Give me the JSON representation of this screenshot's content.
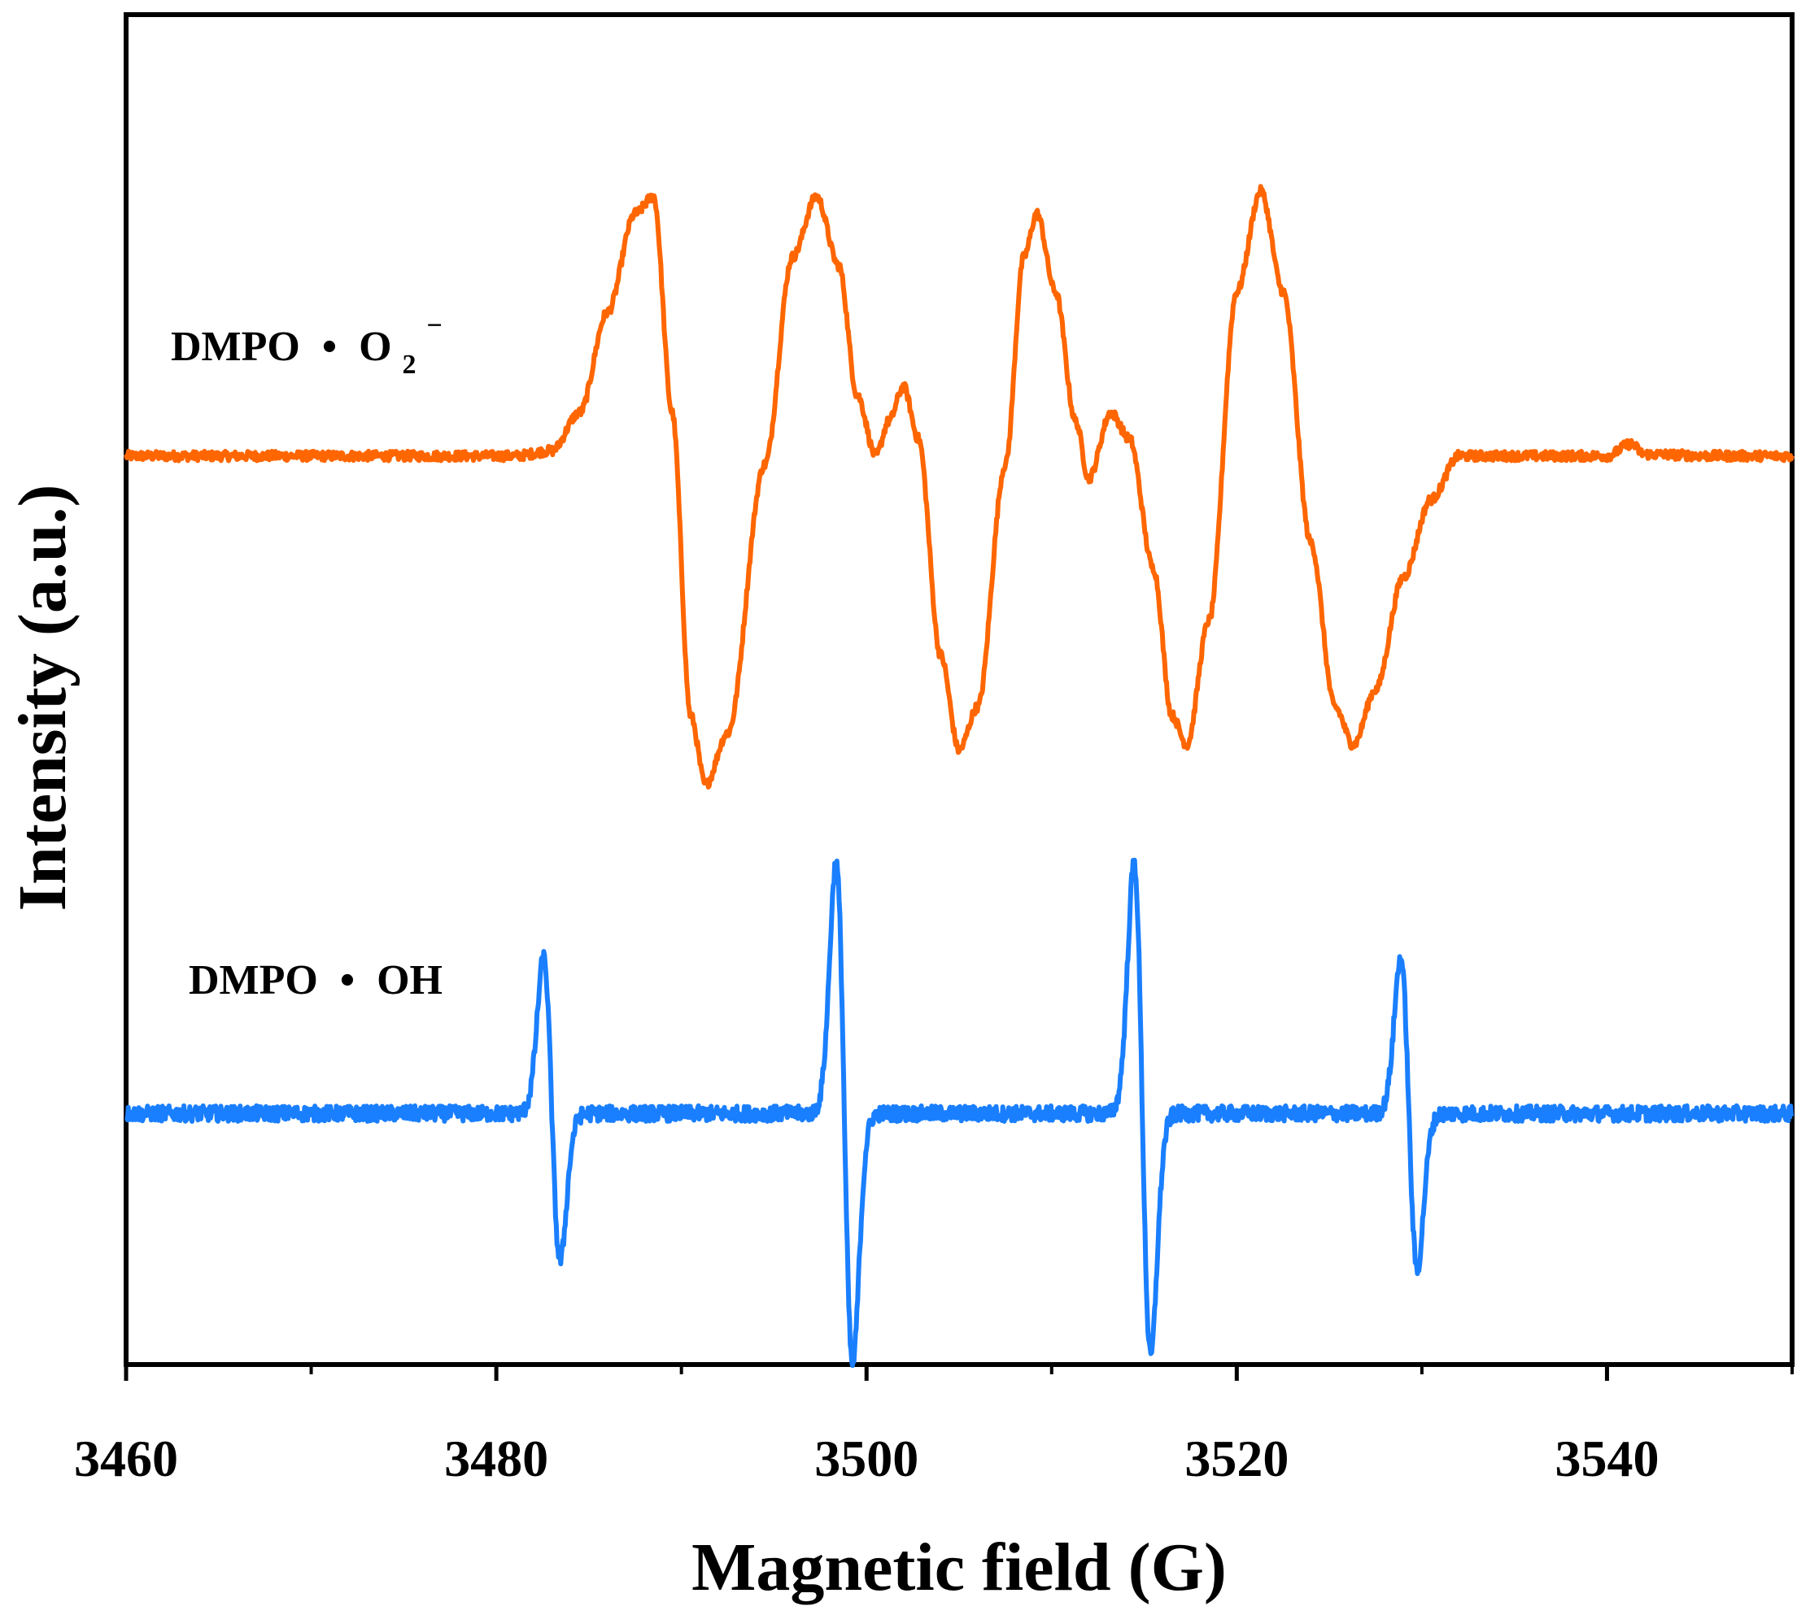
{
  "chart_data": {
    "type": "line",
    "xlabel": "Magnetic field (G)",
    "ylabel": "Intensity (a.u.)",
    "xlim": [
      3460,
      3550
    ],
    "ylim": [
      -3.2,
      4.6
    ],
    "x_ticks": [
      3460,
      3480,
      3500,
      3520,
      3540
    ],
    "x_minor_ticks": [
      3470,
      3490,
      3510,
      3530,
      3550
    ],
    "y_ticks_shown": false,
    "grid": false,
    "series": [
      {
        "name": "DMPO • O2−",
        "label_main": "DMPO",
        "label_bullet": "•",
        "label_species": "O",
        "label_subscript": "2",
        "label_superscript": "−",
        "color": "#ff6600",
        "baseline": 2.05,
        "points": [
          [
            3460,
            2.05
          ],
          [
            3466,
            2.05
          ],
          [
            3472,
            2.05
          ],
          [
            3478,
            2.05
          ],
          [
            3481,
            2.05
          ],
          [
            3483,
            2.08
          ],
          [
            3484.5,
            2.3
          ],
          [
            3486,
            2.88
          ],
          [
            3487.5,
            3.45
          ],
          [
            3488.5,
            3.55
          ],
          [
            3489.5,
            2.3
          ],
          [
            3490.5,
            0.55
          ],
          [
            3491.3,
            0.15
          ],
          [
            3492.5,
            0.45
          ],
          [
            3494.5,
            2.0
          ],
          [
            3496,
            3.2
          ],
          [
            3497.3,
            3.55
          ],
          [
            3498.5,
            3.15
          ],
          [
            3499.5,
            2.4
          ],
          [
            3500.5,
            2.05
          ],
          [
            3501.2,
            2.25
          ],
          [
            3502,
            2.45
          ],
          [
            3502.8,
            2.15
          ],
          [
            3504,
            0.9
          ],
          [
            3505,
            0.35
          ],
          [
            3506,
            0.6
          ],
          [
            3507.5,
            2.0
          ],
          [
            3508.5,
            3.2
          ],
          [
            3509.2,
            3.45
          ],
          [
            3510.2,
            3.0
          ],
          [
            3511.3,
            2.25
          ],
          [
            3512,
            1.92
          ],
          [
            3513.2,
            2.3
          ],
          [
            3514.2,
            2.15
          ],
          [
            3515.5,
            1.4
          ],
          [
            3516.5,
            0.55
          ],
          [
            3517.3,
            0.38
          ],
          [
            3518.5,
            1.1
          ],
          [
            3520,
            3.0
          ],
          [
            3521.3,
            3.58
          ],
          [
            3522.5,
            3.0
          ],
          [
            3524,
            1.55
          ],
          [
            3525.3,
            0.6
          ],
          [
            3526.3,
            0.38
          ],
          [
            3527.5,
            0.7
          ],
          [
            3529,
            1.35
          ],
          [
            3530.5,
            1.8
          ],
          [
            3532,
            2.05
          ],
          [
            3536,
            2.05
          ],
          [
            3540,
            2.05
          ],
          [
            3541.3,
            2.12
          ],
          [
            3542,
            2.06
          ],
          [
            3546,
            2.05
          ],
          [
            3550,
            2.05
          ]
        ]
      },
      {
        "name": "DMPO • OH",
        "label_main": "DMPO",
        "label_bullet": "•",
        "label_species": "OH",
        "color": "#1a7fff",
        "baseline": -1.75,
        "lines": [
          {
            "center": 3483,
            "amplitude_up": 0.9,
            "amplitude_down": 0.85
          },
          {
            "center": 3498.8,
            "amplitude_up": 1.45,
            "amplitude_down": 1.45
          },
          {
            "center": 3514.9,
            "amplitude_up": 1.45,
            "amplitude_down": 1.4
          },
          {
            "center": 3529.3,
            "amplitude_up": 0.9,
            "amplitude_down": 0.9
          }
        ]
      }
    ]
  }
}
